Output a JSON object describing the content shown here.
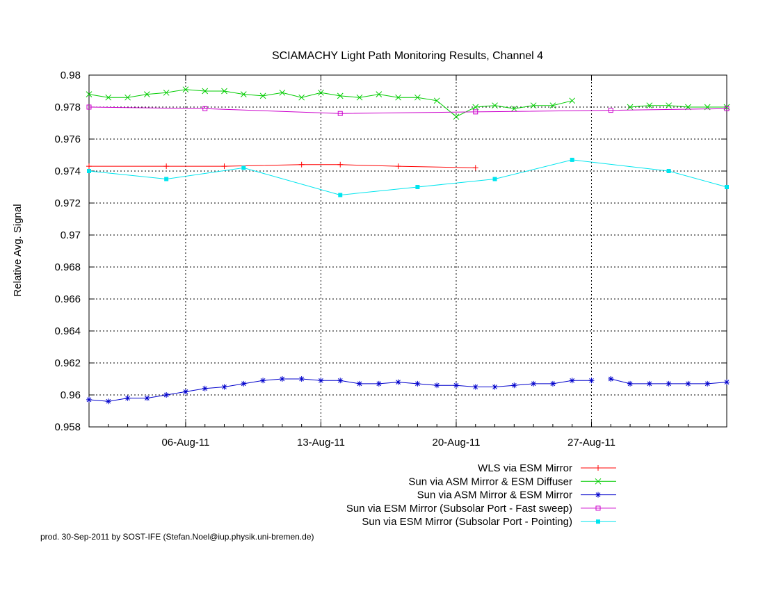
{
  "chart_data": {
    "type": "line",
    "title": "SCIAMACHY Light Path Monitoring Results, Channel 4",
    "ylabel": "Relative Avg. Signal",
    "xlabel": "",
    "xlim": [
      "2011-08-01",
      "2011-09-03"
    ],
    "ylim": [
      0.958,
      0.98
    ],
    "yticks": [
      0.958,
      0.96,
      0.962,
      0.964,
      0.966,
      0.968,
      0.97,
      0.972,
      0.974,
      0.976,
      0.978,
      0.98
    ],
    "ytick_labels": [
      "0.958",
      "0.96",
      "0.962",
      "0.964",
      "0.966",
      "0.968",
      "0.97",
      "0.972",
      "0.974",
      "0.976",
      "0.978",
      "0.98"
    ],
    "xticks": [
      "2011-08-06",
      "2011-08-13",
      "2011-08-20",
      "2011-08-27"
    ],
    "xtick_labels": [
      "06-Aug-11",
      "13-Aug-11",
      "20-Aug-11",
      "27-Aug-11"
    ],
    "grid": true,
    "legend_position": "bottom-right, below plot",
    "series": [
      {
        "name": "WLS via ESM Mirror",
        "color": "#ff0000",
        "marker": "plus",
        "x": [
          "2011-08-01",
          "2011-08-05",
          "2011-08-08",
          "2011-08-12",
          "2011-08-14",
          "2011-08-17",
          "2011-08-21"
        ],
        "y": [
          0.9743,
          0.9743,
          0.9743,
          0.9744,
          0.9744,
          0.9743,
          0.9742
        ]
      },
      {
        "name": "Sun via ASM Mirror & ESM Diffuser",
        "color": "#00cc00",
        "marker": "cross",
        "x": [
          "2011-08-01",
          "2011-08-02",
          "2011-08-03",
          "2011-08-04",
          "2011-08-05",
          "2011-08-06",
          "2011-08-07",
          "2011-08-08",
          "2011-08-09",
          "2011-08-10",
          "2011-08-11",
          "2011-08-12",
          "2011-08-13",
          "2011-08-14",
          "2011-08-15",
          "2011-08-16",
          "2011-08-17",
          "2011-08-18",
          "2011-08-19",
          "2011-08-20",
          "2011-08-21",
          "2011-08-22",
          "2011-08-23",
          "2011-08-24",
          "2011-08-25",
          "2011-08-26",
          null,
          "2011-08-29",
          "2011-08-30",
          "2011-08-31",
          "2011-09-01",
          "2011-09-02",
          "2011-09-03"
        ],
        "y": [
          0.9788,
          0.9786,
          0.9786,
          0.9788,
          0.9789,
          0.9791,
          0.979,
          0.979,
          0.9788,
          0.9787,
          0.9789,
          0.9786,
          0.9789,
          0.9787,
          0.9786,
          0.9788,
          0.9786,
          0.9786,
          0.9784,
          0.9774,
          0.978,
          0.9781,
          0.9779,
          0.9781,
          0.9781,
          0.9784,
          null,
          0.978,
          0.9781,
          0.9781,
          0.978,
          0.978,
          0.978
        ]
      },
      {
        "name": "Sun via ASM Mirror & ESM Mirror",
        "color": "#0000cc",
        "marker": "star",
        "x": [
          "2011-08-01",
          "2011-08-02",
          "2011-08-03",
          "2011-08-04",
          "2011-08-05",
          "2011-08-06",
          "2011-08-07",
          "2011-08-08",
          "2011-08-09",
          "2011-08-10",
          "2011-08-11",
          "2011-08-12",
          "2011-08-13",
          "2011-08-14",
          "2011-08-15",
          "2011-08-16",
          "2011-08-17",
          "2011-08-18",
          "2011-08-19",
          "2011-08-20",
          "2011-08-21",
          "2011-08-22",
          "2011-08-23",
          "2011-08-24",
          "2011-08-25",
          "2011-08-26",
          "2011-08-27",
          null,
          "2011-08-28",
          "2011-08-29",
          "2011-08-30",
          "2011-08-31",
          "2011-09-01",
          "2011-09-02",
          "2011-09-03"
        ],
        "y": [
          0.9597,
          0.9596,
          0.9598,
          0.9598,
          0.96,
          0.9602,
          0.9604,
          0.9605,
          0.9607,
          0.9609,
          0.961,
          0.961,
          0.9609,
          0.9609,
          0.9607,
          0.9607,
          0.9608,
          0.9607,
          0.9606,
          0.9606,
          0.9605,
          0.9605,
          0.9606,
          0.9607,
          0.9607,
          0.9609,
          0.9609,
          null,
          0.961,
          0.9607,
          0.9607,
          0.9607,
          0.9607,
          0.9607,
          0.9608
        ]
      },
      {
        "name": "Sun via ESM Mirror (Subsolar Port - Fast sweep)",
        "color": "#cc00cc",
        "marker": "open-square",
        "x": [
          "2011-08-01",
          "2011-08-07",
          "2011-08-14",
          "2011-08-21",
          "2011-08-28",
          "2011-09-03"
        ],
        "y": [
          0.978,
          0.9779,
          0.9776,
          0.9777,
          0.9778,
          0.9779
        ]
      },
      {
        "name": "Sun via ESM Mirror (Subsolar Port - Pointing)",
        "color": "#00e5ee",
        "marker": "filled-square",
        "x": [
          "2011-08-01",
          "2011-08-05",
          "2011-08-09",
          "2011-08-14",
          "2011-08-18",
          "2011-08-22",
          "2011-08-26",
          "2011-08-31",
          "2011-09-03"
        ],
        "y": [
          0.974,
          0.9735,
          0.9742,
          0.9725,
          0.973,
          0.9735,
          0.9747,
          0.974,
          0.973
        ]
      }
    ],
    "footer": "prod. 30-Sep-2011 by SOST-IFE (Stefan.Noel@iup.physik.uni-bremen.de)"
  }
}
